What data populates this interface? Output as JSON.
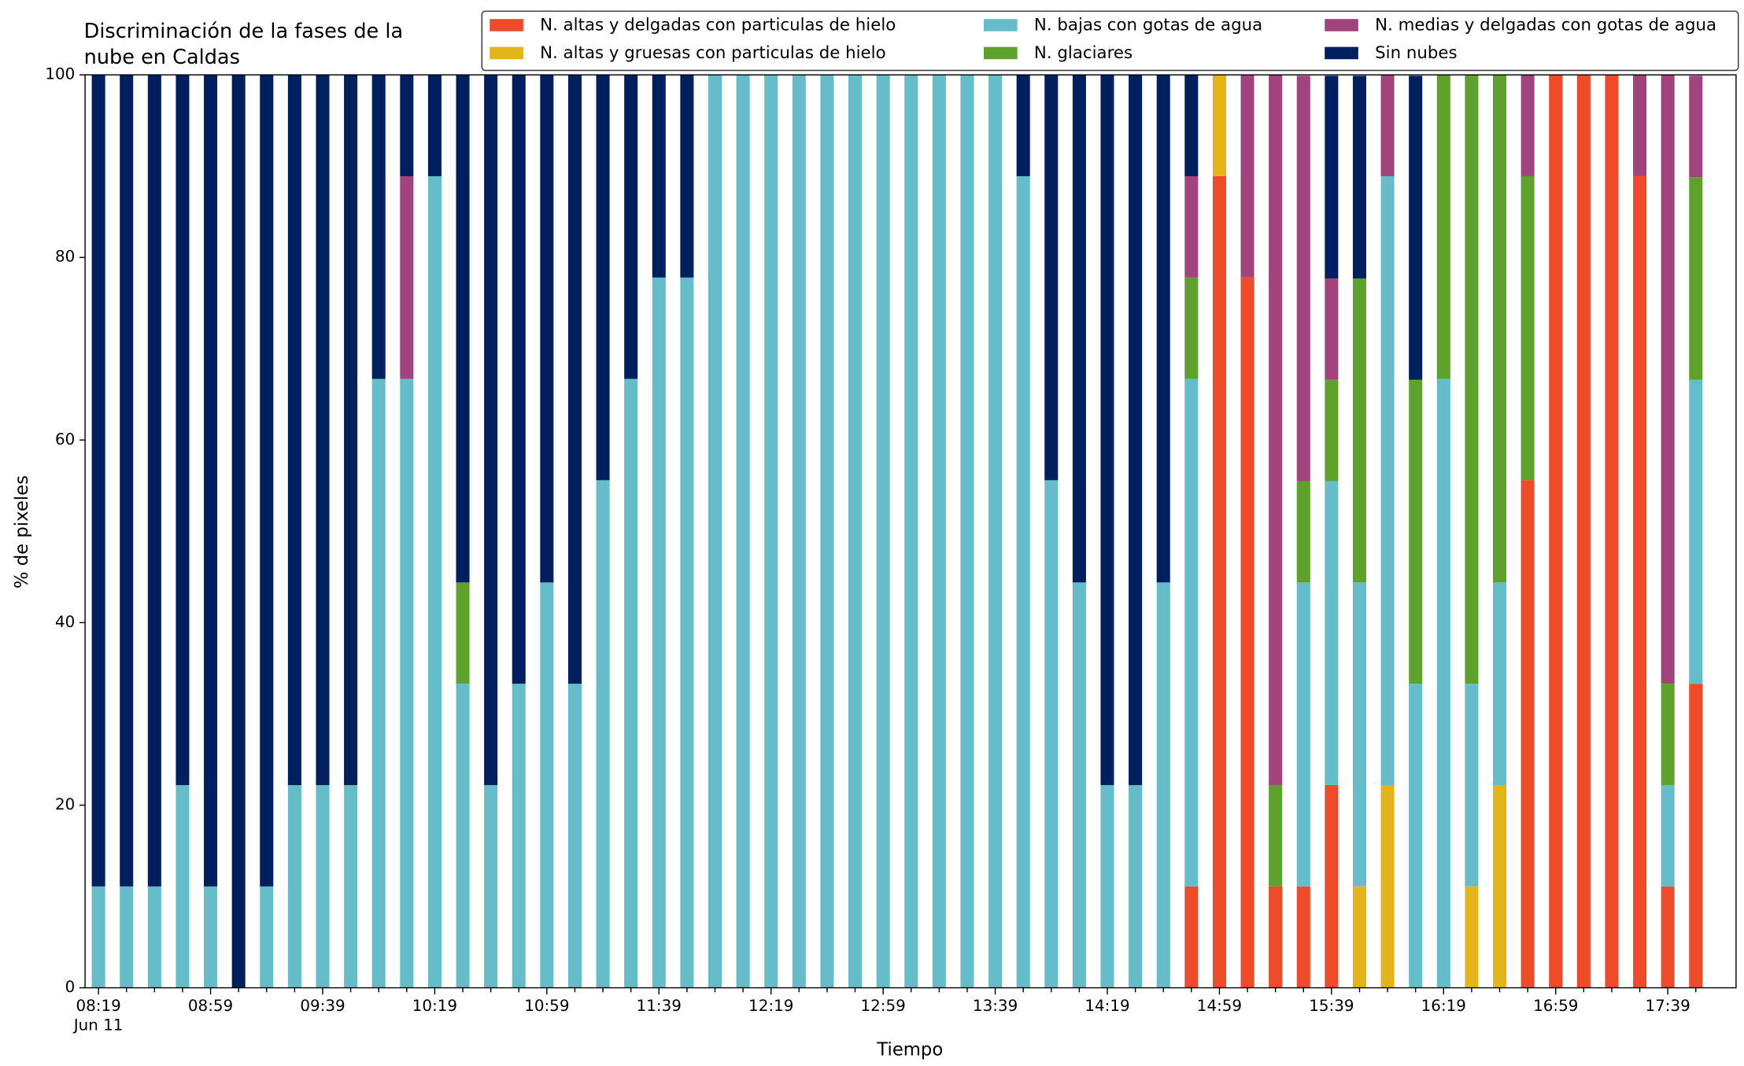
{
  "chart_data": {
    "type": "stacked_bar",
    "title": [
      "Discriminación de la fases de la",
      "nube en Caldas"
    ],
    "xlabel": "Tiempo",
    "ylabel": "% de pixeles",
    "date_label": "Jun 11",
    "categories": [
      "08:19",
      null,
      null,
      null,
      "08:59",
      null,
      null,
      null,
      "09:39",
      null,
      null,
      null,
      "10:19",
      null,
      null,
      null,
      "10:59",
      null,
      null,
      null,
      "11:39",
      null,
      null,
      null,
      "12:19",
      null,
      null,
      null,
      "12:59",
      null,
      null,
      null,
      "13:39",
      null,
      null,
      null,
      "14:19",
      null,
      null,
      null,
      "14:59",
      null,
      null,
      null,
      "15:39",
      null,
      null,
      null,
      "16:19",
      null,
      null,
      null,
      "16:59",
      null,
      null,
      null,
      "17:39",
      null
    ],
    "ylim": [
      0,
      100
    ],
    "yticks": [
      0,
      20,
      40,
      60,
      80,
      100
    ],
    "legend": "upper right",
    "series": [
      {
        "name": "N. altas y delgadas con particulas de hielo",
        "color": "#ee4b2b",
        "values": [
          0,
          0,
          0,
          0,
          0,
          0,
          0,
          0,
          0,
          0,
          0,
          0,
          0,
          0,
          0,
          0,
          0,
          0,
          0,
          0,
          0,
          0,
          0,
          0,
          0,
          0,
          0,
          0,
          0,
          0,
          0,
          0,
          0,
          0,
          0,
          0,
          0,
          0,
          0,
          11.1,
          88.9,
          77.8,
          11.1,
          11.1,
          22.2,
          0,
          0,
          0,
          0,
          0,
          0,
          55.6,
          100,
          100,
          100,
          88.9,
          11.1,
          33.3
        ]
      },
      {
        "name": "N. altas y gruesas con particulas de hielo",
        "color": "#e3b51b",
        "values": [
          0,
          0,
          0,
          0,
          0,
          0,
          0,
          0,
          0,
          0,
          0,
          0,
          0,
          0,
          0,
          0,
          0,
          0,
          0,
          0,
          0,
          0,
          0,
          0,
          0,
          0,
          0,
          0,
          0,
          0,
          0,
          0,
          0,
          0,
          0,
          0,
          0,
          0,
          0,
          0,
          11.1,
          0,
          0,
          0,
          0,
          11.1,
          22.2,
          0,
          0,
          11.1,
          22.2,
          0,
          0,
          0,
          0,
          0,
          0,
          0
        ]
      },
      {
        "name": "N. bajas con gotas de agua",
        "color": "#65bdc9",
        "values": [
          11.1,
          11.1,
          11.1,
          22.2,
          11.1,
          0,
          11.1,
          22.2,
          22.2,
          22.2,
          66.7,
          66.7,
          88.9,
          33.3,
          22.2,
          33.3,
          44.4,
          33.3,
          55.6,
          66.7,
          77.8,
          77.8,
          100,
          100,
          100,
          100,
          100,
          100,
          100,
          100,
          100,
          100,
          100,
          88.9,
          55.6,
          44.4,
          22.2,
          22.2,
          44.4,
          55.6,
          0,
          0,
          0,
          33.3,
          33.3,
          33.3,
          66.7,
          33.3,
          66.7,
          22.2,
          22.2,
          0,
          0,
          0,
          0,
          0,
          11.1,
          33.3
        ]
      },
      {
        "name": "N. glaciares",
        "color": "#5ea22d",
        "values": [
          0,
          0,
          0,
          0,
          0,
          0,
          0,
          0,
          0,
          0,
          0,
          0,
          0,
          11.1,
          0,
          0,
          0,
          0,
          0,
          0,
          0,
          0,
          0,
          0,
          0,
          0,
          0,
          0,
          0,
          0,
          0,
          0,
          0,
          0,
          0,
          0,
          0,
          0,
          0,
          11.1,
          0,
          0,
          11.1,
          11.1,
          11.1,
          33.3,
          0,
          33.3,
          33.3,
          66.7,
          55.6,
          33.3,
          0,
          0,
          0,
          0,
          11.1,
          22.2
        ]
      },
      {
        "name": "N. medias y delgadas con gotas de agua",
        "color": "#a2447c",
        "values": [
          0,
          0,
          0,
          0,
          0,
          0,
          0,
          0,
          0,
          0,
          0,
          22.2,
          0,
          0,
          0,
          0,
          0,
          0,
          0,
          0,
          0,
          0,
          0,
          0,
          0,
          0,
          0,
          0,
          0,
          0,
          0,
          0,
          0,
          0,
          0,
          0,
          0,
          0,
          0,
          11.1,
          0,
          22.2,
          77.8,
          44.4,
          11.1,
          0,
          11.1,
          0,
          0,
          0,
          0,
          11.1,
          0,
          0,
          0,
          11.1,
          66.7,
          11.1
        ]
      },
      {
        "name": "Sin nubes",
        "color": "#001f5e",
        "values": [
          88.9,
          88.9,
          88.9,
          77.8,
          88.9,
          100,
          88.9,
          77.8,
          77.8,
          77.8,
          33.3,
          11.1,
          11.1,
          55.6,
          77.8,
          66.7,
          55.6,
          66.7,
          44.4,
          33.3,
          22.2,
          22.2,
          0,
          0,
          0,
          0,
          0,
          0,
          0,
          0,
          0,
          0,
          0,
          11.1,
          44.4,
          55.6,
          77.8,
          77.8,
          55.6,
          11.1,
          0,
          0,
          0,
          0,
          22.2,
          22.2,
          0,
          33.3,
          0,
          0,
          0,
          0,
          0,
          0,
          0,
          0,
          0,
          0
        ]
      }
    ]
  }
}
